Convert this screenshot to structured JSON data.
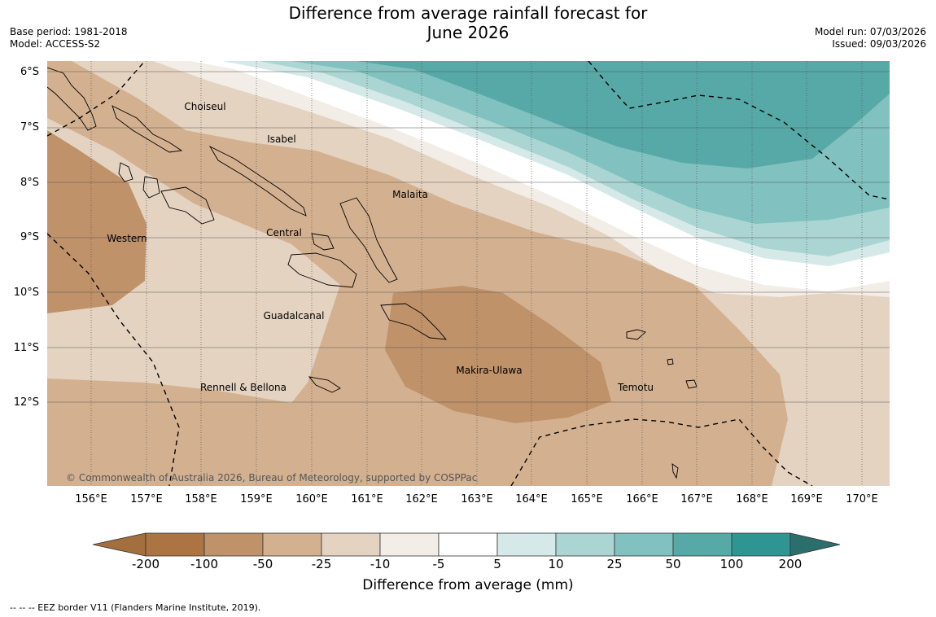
{
  "title_line1": "Difference from average rainfall forecast for",
  "title_line2": "June 2026",
  "base_period": "Base period: 1981-2018",
  "model": "Model: ACCESS-S2",
  "model_run": "Model run: 07/03/2026",
  "issued": "Issued: 09/03/2026",
  "lat_labels": [
    "6°S",
    "7°S",
    "8°S",
    "9°S",
    "10°S",
    "11°S",
    "12°S"
  ],
  "lon_labels": [
    "156°E",
    "157°E",
    "158°E",
    "159°E",
    "160°E",
    "161°E",
    "162°E",
    "163°E",
    "164°E",
    "165°E",
    "166°E",
    "167°E",
    "168°E",
    "169°E",
    "170°E"
  ],
  "regions": [
    "Choiseul",
    "Isabel",
    "Malaita",
    "Western",
    "Central",
    "Guadalcanal",
    "Makira-Ulawa",
    "Rennell & Bellona",
    "Temotu"
  ],
  "copyright": "© Commonwealth of Australia 2026, Bureau of Meteorology, supported by COSPPac",
  "colorbar": {
    "labels": [
      "-200",
      "-100",
      "-50",
      "-25",
      "-10",
      "-5",
      "5",
      "10",
      "25",
      "50",
      "100",
      "200"
    ],
    "colors": [
      "#a36f3d",
      "#ab7442",
      "#bf926a",
      "#d3b190",
      "#e5d3c1",
      "#f3ede7",
      "#ffffff",
      "#d5e9e8",
      "#aad5d3",
      "#81c1bf",
      "#57a9a7",
      "#2e9592",
      "#2b6f6d"
    ],
    "title": "Difference from average (mm)"
  },
  "legend_line": "--  --  -- EEZ border V11 (Flanders Marine Institute, 2019).",
  "palette": {
    "lightest_brown": "#e5d3c1",
    "light_brown": "#d3b190",
    "mid_brown": "#bf926a",
    "near_white_brown": "#f3ede7",
    "white": "#ffffff",
    "lightest_teal": "#d5e9e8",
    "light_teal": "#aad5d3",
    "mid_teal": "#81c1bf",
    "dark_teal": "#57a9a7"
  }
}
